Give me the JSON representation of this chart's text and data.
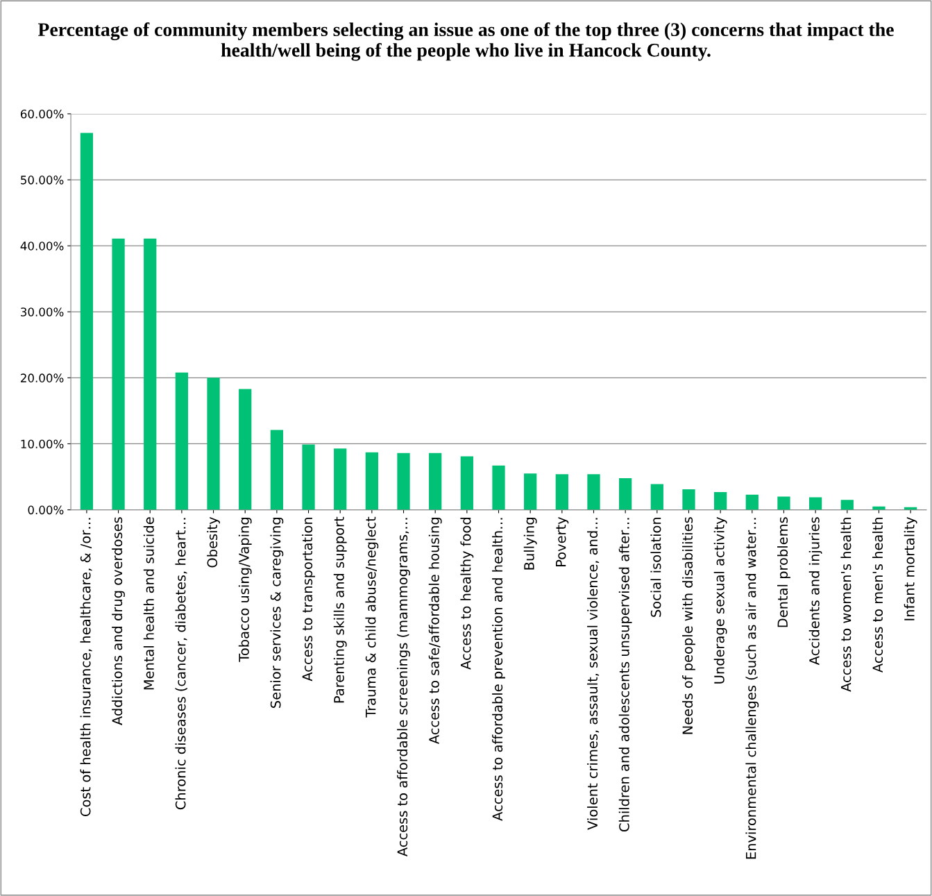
{
  "chart_data": {
    "type": "bar",
    "title": "Percentage of community members selecting an issue as one of the top three (3) concerns that impact the health/well being of the people who live in Hancock County.",
    "categories": [
      "Cost of health insurance, healthcare, & /or…",
      "Addictions and drug overdoses",
      "Mental health and suicide",
      "Chronic diseases (cancer, diabetes, heart…",
      "Obesity",
      "Tobacco using/Vaping",
      "Senior services & caregiving",
      "Access to transportation",
      "Parenting skills and support",
      "Trauma & child abuse/neglect",
      "Access to affordable screenings (mammograms,…",
      "Access to safe/affordable housing",
      "Access to healthy food",
      "Access to affordable prevention and health…",
      "Bullying",
      "Poverty",
      "Violent crimes, assault, sexual violence, and…",
      "Children and adolescents unsupervised after…",
      "Social isolation",
      "Needs of people with disabilities",
      "Underage sexual activity",
      "Environmental challenges (such as air and water…",
      "Dental problems",
      "Accidents and injuries",
      "Access to women's health",
      "Access to men's health",
      "Infant mortality"
    ],
    "values": [
      57.1,
      41.1,
      41.1,
      20.8,
      20.0,
      18.3,
      12.1,
      9.9,
      9.3,
      8.7,
      8.6,
      8.6,
      8.1,
      6.7,
      5.5,
      5.4,
      5.4,
      4.8,
      3.9,
      3.1,
      2.7,
      2.3,
      2.0,
      1.9,
      1.5,
      0.5,
      0.4
    ],
    "color": "#00c176",
    "ylim": [
      0,
      60
    ],
    "yticks": [
      {
        "value": 0,
        "label": "0.00%"
      },
      {
        "value": 10,
        "label": "10.00%"
      },
      {
        "value": 20,
        "label": "20.00%"
      },
      {
        "value": 30,
        "label": "30.00%"
      },
      {
        "value": 40,
        "label": "40.00%"
      },
      {
        "value": 50,
        "label": "50.00%"
      },
      {
        "value": 60,
        "label": "60.00%"
      }
    ],
    "grid": "y"
  }
}
